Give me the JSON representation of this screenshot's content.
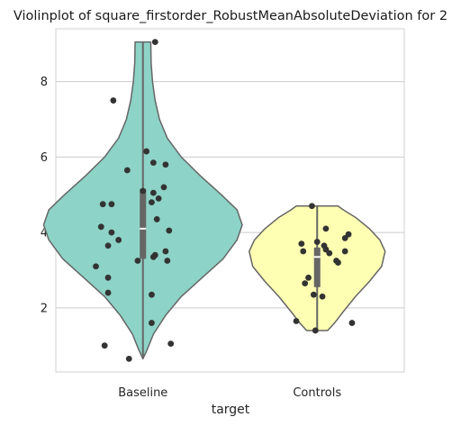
{
  "chart_data": {
    "type": "violin",
    "title": "Violinplot of square_firstorder_RobustMeanAbsoluteDeviation for 2",
    "xlabel": "target",
    "ylabel": "",
    "ylim": [
      0.3,
      9.4
    ],
    "yticks": [
      "2",
      "4",
      "6",
      "8"
    ],
    "yticks_values": [
      2,
      4,
      6,
      8
    ],
    "grid": "horizontal",
    "categories": [
      "Baseline",
      "Controls"
    ],
    "colors": [
      "#8dd3c7",
      "#ffffb3"
    ],
    "violin_outline_color": "#666666",
    "point_color": "#333333",
    "series": [
      {
        "category": "Baseline",
        "min": 0.65,
        "max": 9.05,
        "q1": 3.3,
        "median": 4.1,
        "q3": 5.15,
        "points": [
          {
            "x": -0.17,
            "y": 7.5
          },
          {
            "x": 0.07,
            "y": 9.05
          },
          {
            "x": 0.02,
            "y": 6.15
          },
          {
            "x": -0.09,
            "y": 5.65
          },
          {
            "x": 0.13,
            "y": 5.8
          },
          {
            "x": 0.06,
            "y": 5.85
          },
          {
            "x": 0.12,
            "y": 5.2
          },
          {
            "x": 0.0,
            "y": 5.1
          },
          {
            "x": 0.06,
            "y": 5.05
          },
          {
            "x": 0.09,
            "y": 4.9
          },
          {
            "x": 0.05,
            "y": 4.8
          },
          {
            "x": -0.18,
            "y": 4.75
          },
          {
            "x": -0.23,
            "y": 4.75
          },
          {
            "x": 0.08,
            "y": 4.35
          },
          {
            "x": -0.24,
            "y": 4.15
          },
          {
            "x": -0.18,
            "y": 4.0
          },
          {
            "x": 0.15,
            "y": 4.05
          },
          {
            "x": -0.14,
            "y": 3.8
          },
          {
            "x": -0.2,
            "y": 3.65
          },
          {
            "x": 0.13,
            "y": 3.5
          },
          {
            "x": 0.07,
            "y": 3.4
          },
          {
            "x": 0.06,
            "y": 3.35
          },
          {
            "x": -0.03,
            "y": 3.25
          },
          {
            "x": 0.14,
            "y": 3.25
          },
          {
            "x": -0.27,
            "y": 3.1
          },
          {
            "x": -0.2,
            "y": 2.8
          },
          {
            "x": -0.2,
            "y": 2.4
          },
          {
            "x": 0.05,
            "y": 2.35
          },
          {
            "x": 0.05,
            "y": 1.6
          },
          {
            "x": -0.22,
            "y": 1.0
          },
          {
            "x": 0.16,
            "y": 1.05
          },
          {
            "x": -0.08,
            "y": 0.65
          }
        ],
        "density": [
          [
            0.65,
            0.0
          ],
          [
            0.9,
            0.025
          ],
          [
            1.3,
            0.06
          ],
          [
            1.8,
            0.13
          ],
          [
            2.3,
            0.22
          ],
          [
            2.8,
            0.34
          ],
          [
            3.3,
            0.46
          ],
          [
            3.8,
            0.54
          ],
          [
            4.2,
            0.57
          ],
          [
            4.6,
            0.54
          ],
          [
            5.0,
            0.45
          ],
          [
            5.5,
            0.33
          ],
          [
            6.0,
            0.22
          ],
          [
            6.5,
            0.14
          ],
          [
            7.0,
            0.095
          ],
          [
            7.5,
            0.07
          ],
          [
            8.0,
            0.055
          ],
          [
            8.5,
            0.047
          ],
          [
            9.05,
            0.045
          ]
        ]
      },
      {
        "category": "Controls",
        "min": 1.4,
        "max": 4.7,
        "q1": 2.55,
        "median": 3.35,
        "q3": 3.6,
        "points": [
          {
            "x": -0.03,
            "y": 4.7
          },
          {
            "x": 0.05,
            "y": 4.1
          },
          {
            "x": 0.18,
            "y": 3.95
          },
          {
            "x": 0.16,
            "y": 3.85
          },
          {
            "x": 0.0,
            "y": 3.75
          },
          {
            "x": -0.09,
            "y": 3.7
          },
          {
            "x": 0.04,
            "y": 3.65
          },
          {
            "x": 0.05,
            "y": 3.55
          },
          {
            "x": -0.08,
            "y": 3.5
          },
          {
            "x": 0.16,
            "y": 3.5
          },
          {
            "x": 0.07,
            "y": 3.45
          },
          {
            "x": 0.11,
            "y": 3.25
          },
          {
            "x": 0.12,
            "y": 3.2
          },
          {
            "x": -0.05,
            "y": 2.8
          },
          {
            "x": -0.07,
            "y": 2.65
          },
          {
            "x": -0.02,
            "y": 2.35
          },
          {
            "x": 0.03,
            "y": 2.3
          },
          {
            "x": -0.12,
            "y": 1.65
          },
          {
            "x": 0.2,
            "y": 1.6
          },
          {
            "x": -0.01,
            "y": 1.4
          }
        ],
        "density": [
          [
            1.4,
            0.06
          ],
          [
            1.6,
            0.1
          ],
          [
            1.9,
            0.15
          ],
          [
            2.3,
            0.22
          ],
          [
            2.7,
            0.3
          ],
          [
            3.1,
            0.37
          ],
          [
            3.5,
            0.39
          ],
          [
            3.8,
            0.36
          ],
          [
            4.1,
            0.3
          ],
          [
            4.4,
            0.22
          ],
          [
            4.6,
            0.15
          ],
          [
            4.7,
            0.12
          ]
        ]
      }
    ]
  }
}
